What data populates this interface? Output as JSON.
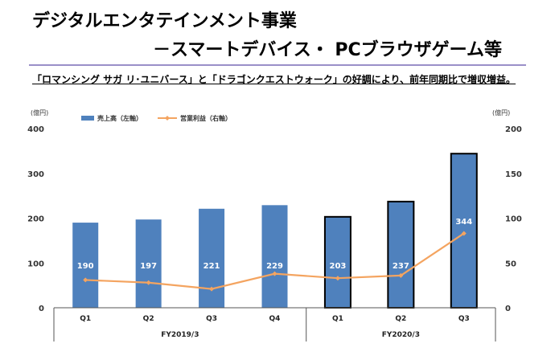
{
  "header": {
    "title_line1": "デジタルエンタテインメント事業",
    "title_line2": "－スマートデバイス・ PCブラウザゲーム等",
    "subtitle": "「ロマンシング サガ リ･ユニバース」と「ドラゴンクエストウォーク」の好調により、前年同期比で増収増益。"
  },
  "chart_data": {
    "type": "bar",
    "left_unit": "(億円)",
    "right_unit": "(億円)",
    "categories": [
      "Q1",
      "Q2",
      "Q3",
      "Q4",
      "Q1",
      "Q2",
      "Q3"
    ],
    "groups": [
      {
        "label": "FY2019/3",
        "count": 4
      },
      {
        "label": "FY2020/3",
        "count": 3
      }
    ],
    "left_ylim": [
      0,
      400
    ],
    "left_ticks": [
      0,
      100,
      200,
      300,
      400
    ],
    "right_ylim": [
      0,
      200
    ],
    "right_ticks": [
      0,
      50,
      100,
      150,
      200
    ],
    "series": [
      {
        "name": "売上高（左軸）",
        "type": "bar",
        "axis": "left",
        "values": [
          190,
          197,
          221,
          229,
          203,
          237,
          344
        ],
        "labels": [
          "190",
          "197",
          "221",
          "229",
          "203",
          "237",
          "344"
        ],
        "color": "#4f81bd",
        "outlined": [
          false,
          false,
          false,
          false,
          true,
          true,
          true
        ]
      },
      {
        "name": "営業利益（右軸）",
        "type": "line",
        "axis": "right",
        "values": [
          31,
          28,
          21,
          38,
          33,
          36,
          83
        ],
        "color": "#f4a460"
      }
    ],
    "legend_position": "top-left",
    "grid": false
  }
}
